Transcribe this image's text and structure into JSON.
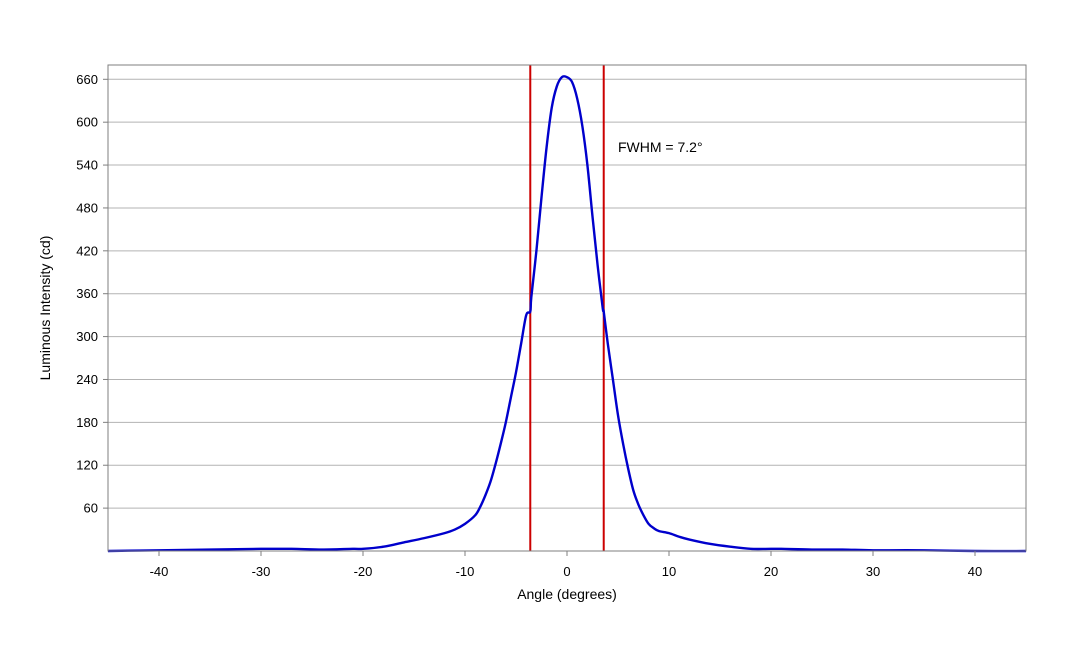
{
  "chart_data": {
    "type": "line",
    "title": "",
    "xlabel": "Angle (degrees)",
    "ylabel": "Luminous Intensity (cd)",
    "xlim": [
      -45,
      45
    ],
    "ylim": [
      0,
      680
    ],
    "xticks": [
      -40,
      -30,
      -20,
      -10,
      0,
      10,
      20,
      30,
      40
    ],
    "yticks": [
      60,
      120,
      180,
      240,
      300,
      360,
      420,
      480,
      540,
      600,
      660
    ],
    "grid": "horizontal",
    "series": [
      {
        "name": "",
        "color": "#0000cc",
        "x": [
          -45,
          -40,
          -35,
          -30,
          -27,
          -24,
          -21,
          -20,
          -18,
          -16,
          -14,
          -12,
          -11,
          -10,
          -9,
          -8.5,
          -8,
          -7.5,
          -7,
          -6.5,
          -6,
          -5.5,
          -5,
          -4.5,
          -4,
          -3.6,
          -3.5,
          -3,
          -2.5,
          -2,
          -1.5,
          -1,
          -0.5,
          0,
          0.5,
          1,
          1.5,
          2,
          2.5,
          3,
          3.5,
          3.6,
          4,
          4.5,
          5,
          5.5,
          6,
          6.5,
          7,
          7.5,
          8,
          8.5,
          9,
          10,
          11,
          12,
          14,
          16,
          18,
          20,
          21,
          24,
          27,
          30,
          35,
          40,
          45
        ],
        "y": [
          0,
          1,
          2,
          3,
          3,
          2,
          3,
          3,
          6,
          12,
          18,
          25,
          30,
          38,
          50,
          62,
          78,
          97,
          122,
          150,
          180,
          215,
          250,
          290,
          330,
          335,
          355,
          420,
          495,
          565,
          620,
          650,
          663,
          663,
          656,
          633,
          595,
          540,
          468,
          400,
          340,
          335,
          290,
          240,
          190,
          150,
          115,
          85,
          65,
          50,
          38,
          32,
          28,
          25,
          20,
          16,
          10,
          6,
          3,
          3,
          3,
          2,
          2,
          1,
          1,
          0,
          0
        ]
      }
    ],
    "reference_lines": [
      {
        "x": -3.6,
        "color": "#cc0000"
      },
      {
        "x": 3.6,
        "color": "#cc0000"
      }
    ],
    "annotations": [
      {
        "text": "FWHM = 7.2°",
        "x": 5,
        "y": 565
      }
    ],
    "colors": {
      "line": "#0000cc",
      "reference": "#cc0000",
      "grid": "#b3b3b3",
      "frame": "#7f7f7f"
    }
  }
}
